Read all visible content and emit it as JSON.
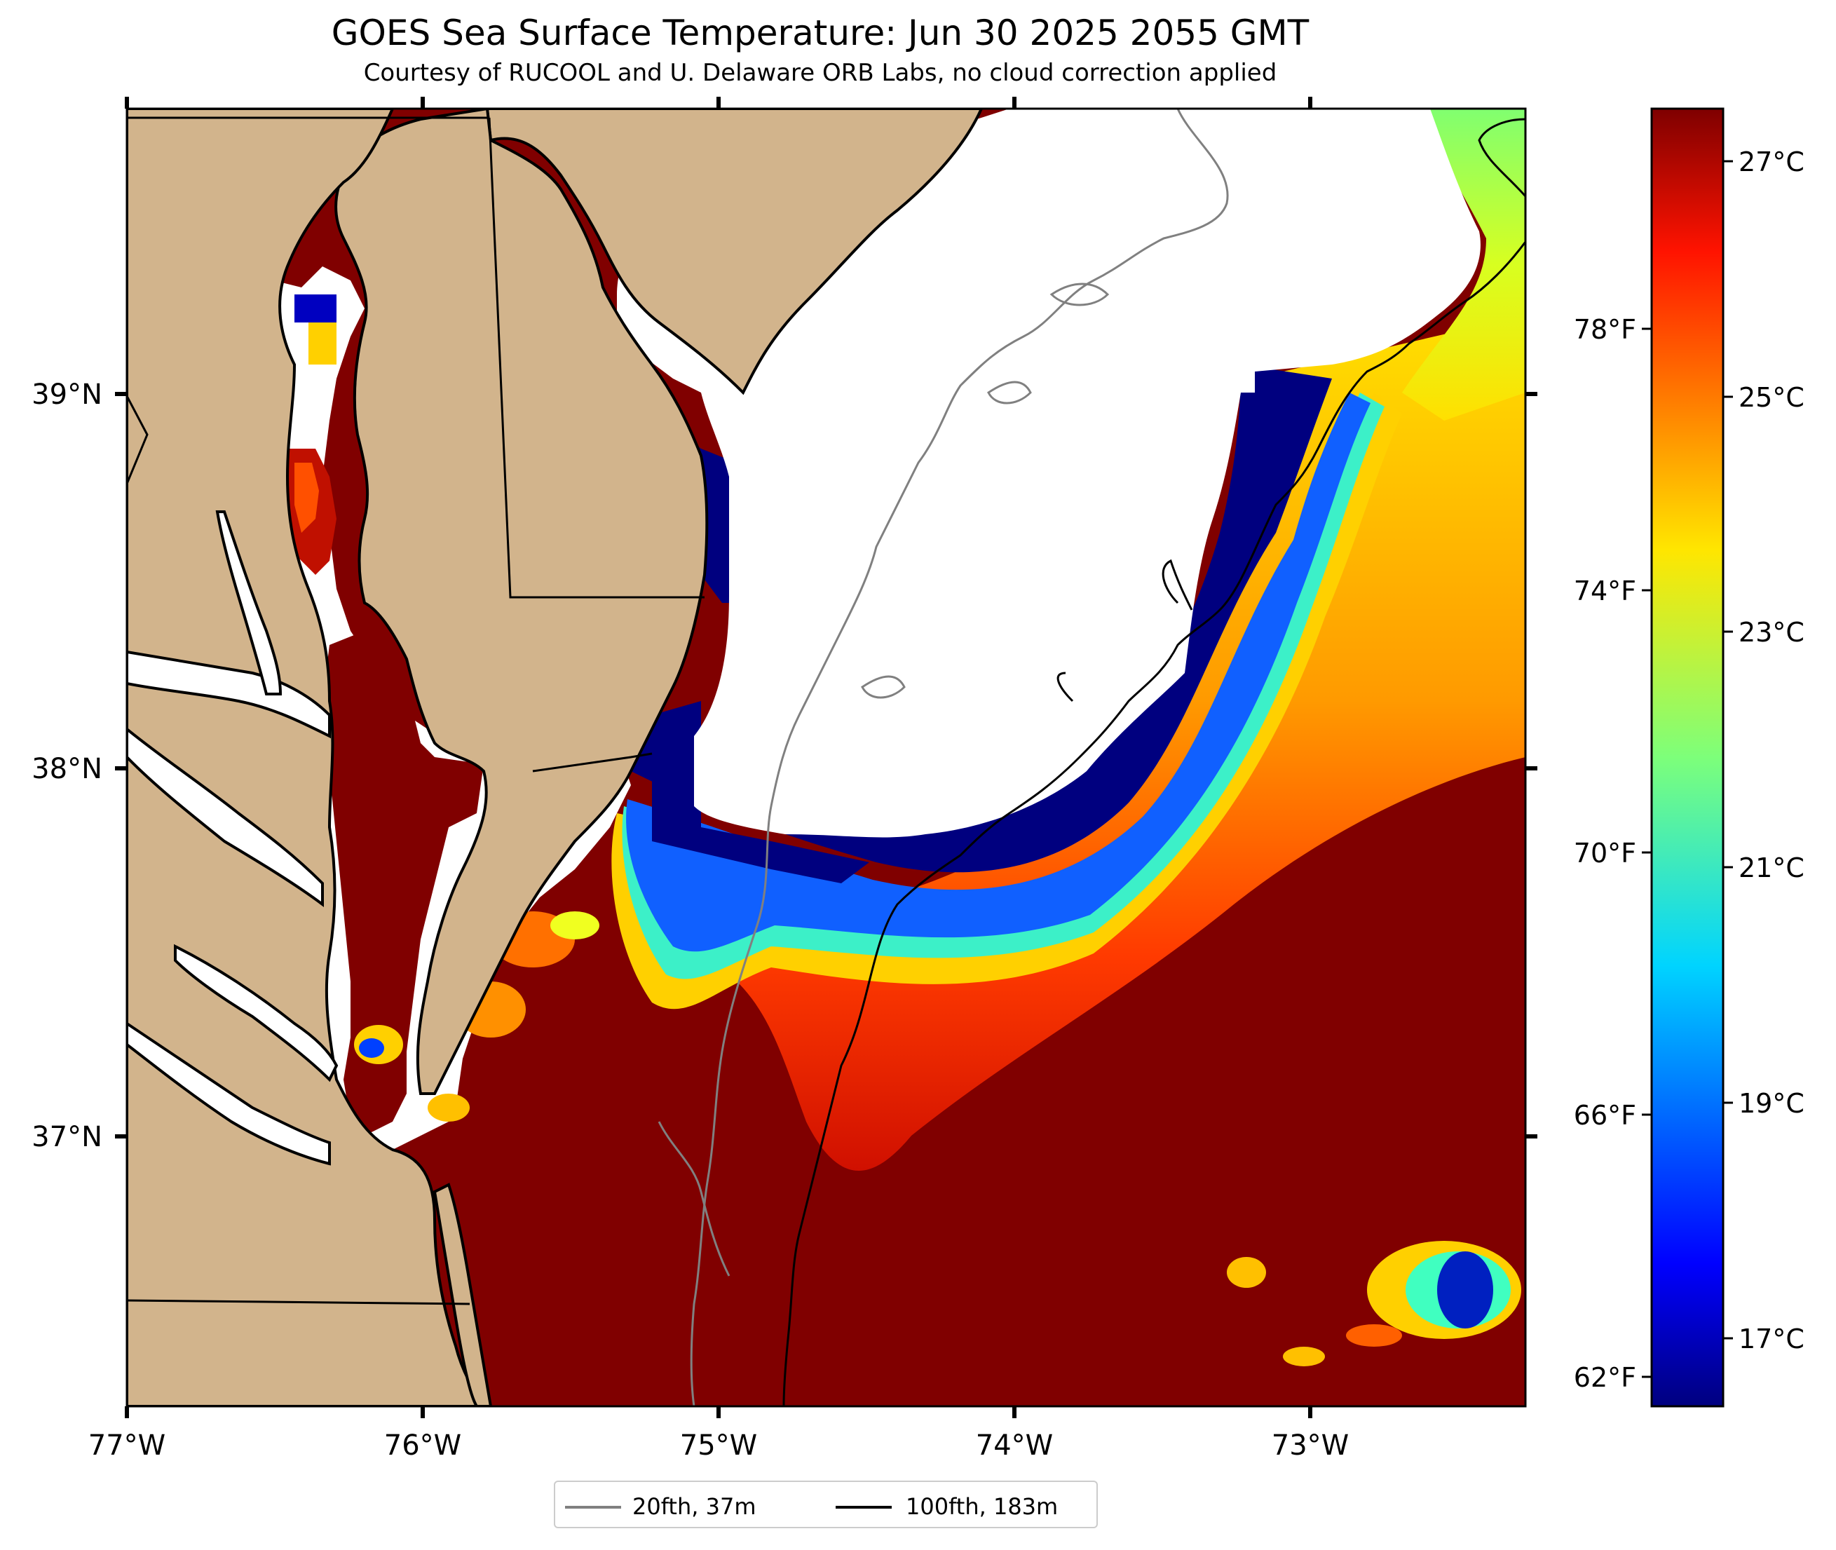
{
  "map": {
    "title": "GOES Sea Surface Temperature: Jun 30 2025 2055 GMT",
    "subtitle": "Courtesy of RUCOOL and U. Delaware ORB Labs, no cloud correction applied",
    "longitude_ticks": [
      "77°W",
      "76°W",
      "75°W",
      "74°W",
      "73°W"
    ],
    "latitude_ticks": [
      "39°N",
      "38°N",
      "37°N"
    ],
    "colors": {
      "land": "#d2b48c",
      "cloud_nodata": "#ffffff",
      "warm_water": "#800000"
    }
  },
  "colorbar": {
    "celsius_ticks": [
      "27°C",
      "25°C",
      "23°C",
      "21°C",
      "19°C",
      "17°C"
    ],
    "fahrenheit_ticks": [
      "78°F",
      "74°F",
      "70°F",
      "66°F",
      "62°F"
    ],
    "range_celsius": [
      16.5,
      27.5
    ],
    "colormap": "jet"
  },
  "legend": {
    "items": [
      {
        "label": "20fth, 37m",
        "color": "#808080"
      },
      {
        "label": "100fth, 183m",
        "color": "#000000"
      }
    ]
  }
}
